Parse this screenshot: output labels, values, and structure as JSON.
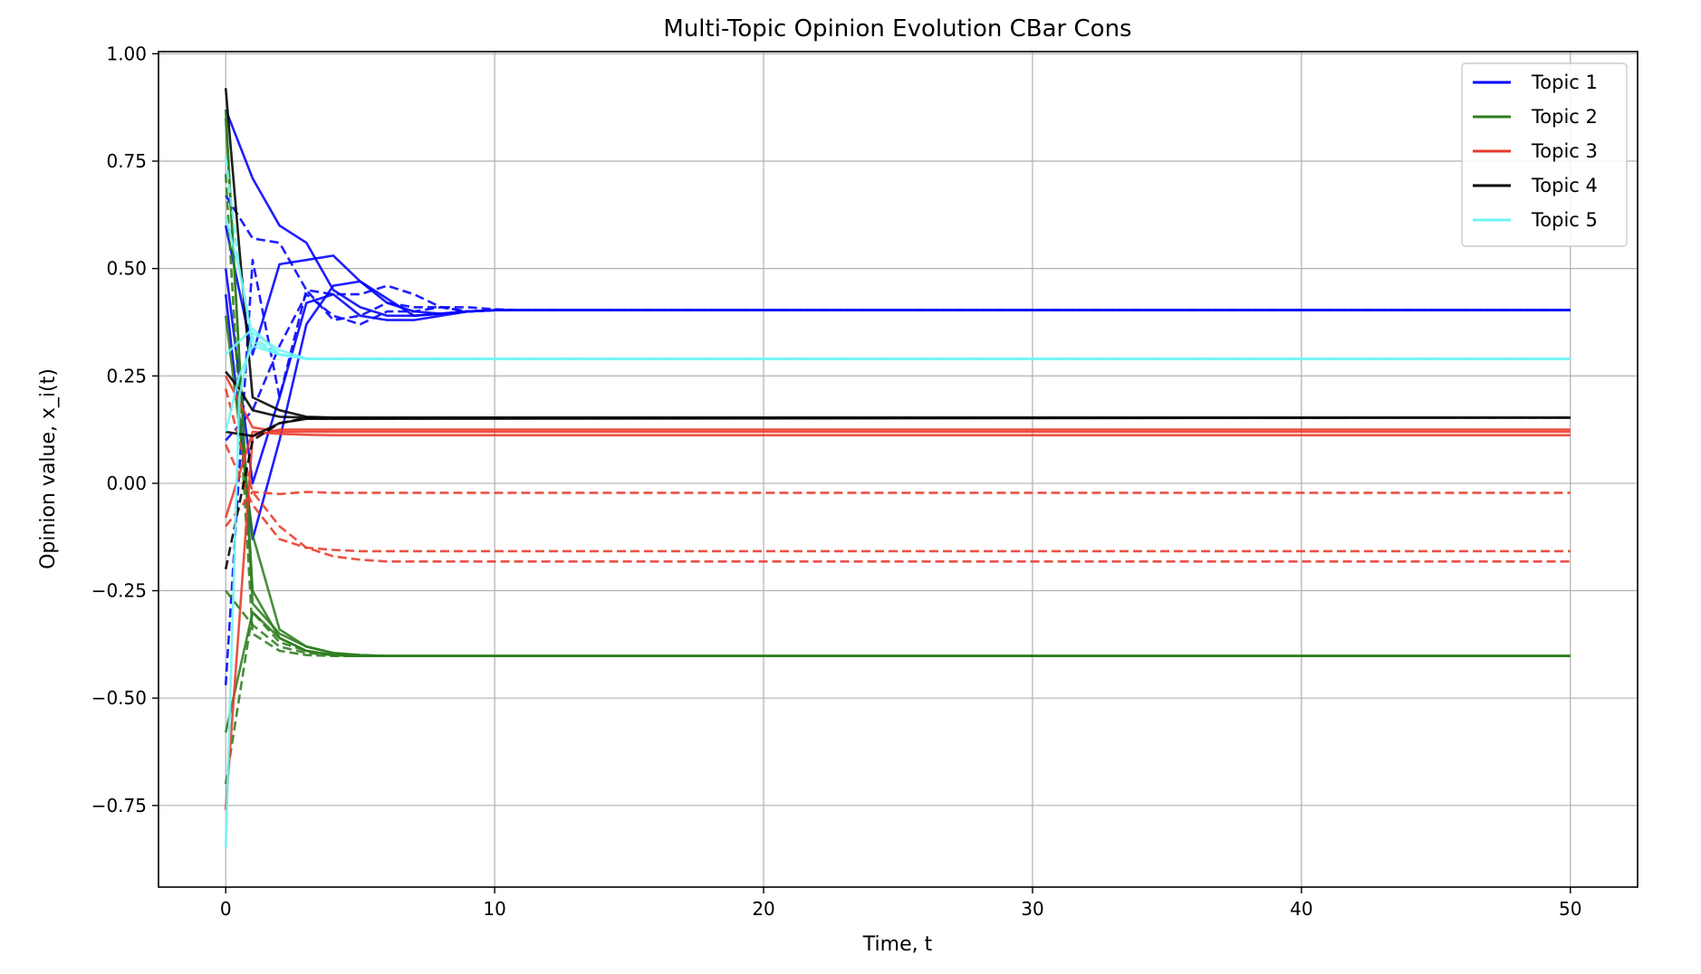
{
  "chart_data": {
    "type": "line",
    "title": "Multi-Topic Opinion Evolution CBar Cons",
    "xlabel": "Time, t",
    "ylabel": "Opinion value, x_i(t)",
    "xlim": [
      -2.5,
      52.5
    ],
    "ylim": [
      -0.94,
      1.005
    ],
    "xticks": [
      0,
      10,
      20,
      30,
      40,
      50
    ],
    "xtick_labels": [
      "0",
      "10",
      "20",
      "30",
      "40",
      "50"
    ],
    "yticks": [
      1.0,
      0.75,
      0.5,
      0.25,
      0.0,
      -0.25,
      -0.5,
      -0.75
    ],
    "ytick_labels": [
      "1.00",
      "0.75",
      "0.50",
      "0.25",
      "0.00",
      "−0.25",
      "−0.50",
      "−0.75"
    ],
    "grid": true,
    "legend_position": "top-right",
    "legend": [
      {
        "label": "Topic 1",
        "color": "#0000ff"
      },
      {
        "label": "Topic 2",
        "color": "#2e7d1e"
      },
      {
        "label": "Topic 3",
        "color": "#e8392a"
      },
      {
        "label": "Topic 4",
        "color": "#000000"
      },
      {
        "label": "Topic 5",
        "color": "#6ef5f5"
      }
    ],
    "series": [
      {
        "topic": 1,
        "style": "solid",
        "x": [
          0,
          1,
          2,
          3,
          4,
          5,
          6,
          7,
          8,
          9,
          10,
          50
        ],
        "y": [
          0.87,
          0.71,
          0.6,
          0.56,
          0.45,
          0.41,
          0.39,
          0.39,
          0.395,
          0.4,
          0.403,
          0.403
        ]
      },
      {
        "topic": 1,
        "style": "solid",
        "x": [
          0,
          1,
          2,
          3,
          4,
          5,
          6,
          7,
          8,
          9,
          10,
          50
        ],
        "y": [
          0.6,
          0.3,
          0.51,
          0.52,
          0.53,
          0.47,
          0.42,
          0.4,
          0.395,
          0.4,
          0.403,
          0.403
        ]
      },
      {
        "topic": 1,
        "style": "solid",
        "x": [
          0,
          1,
          2,
          3,
          4,
          5,
          6,
          7,
          8,
          9,
          10,
          50
        ],
        "y": [
          0.44,
          -0.13,
          0.1,
          0.37,
          0.46,
          0.47,
          0.43,
          0.39,
          0.395,
          0.4,
          0.403,
          0.403
        ]
      },
      {
        "topic": 1,
        "style": "solid",
        "x": [
          0,
          1,
          2,
          3,
          4,
          5,
          6,
          7,
          8,
          9,
          10,
          50
        ],
        "y": [
          0.5,
          0.0,
          0.2,
          0.42,
          0.44,
          0.39,
          0.38,
          0.38,
          0.39,
          0.4,
          0.403,
          0.403
        ]
      },
      {
        "topic": 1,
        "style": "dashed",
        "x": [
          0,
          1,
          2,
          3,
          4,
          5,
          6,
          7,
          8,
          9,
          10,
          11,
          50
        ],
        "y": [
          0.67,
          0.57,
          0.56,
          0.45,
          0.44,
          0.44,
          0.46,
          0.44,
          0.41,
          0.4,
          0.403,
          0.403,
          0.403
        ]
      },
      {
        "topic": 1,
        "style": "dashed",
        "x": [
          0,
          1,
          2,
          3,
          4,
          5,
          6,
          7,
          8,
          9,
          10,
          11,
          50
        ],
        "y": [
          -0.47,
          0.52,
          0.2,
          0.45,
          0.38,
          0.39,
          0.42,
          0.41,
          0.41,
          0.41,
          0.405,
          0.403,
          0.403
        ]
      },
      {
        "topic": 1,
        "style": "dashed",
        "x": [
          0,
          1,
          2,
          3,
          4,
          5,
          6,
          7,
          8,
          9,
          10,
          11,
          50
        ],
        "y": [
          0.1,
          0.17,
          0.32,
          0.44,
          0.39,
          0.37,
          0.4,
          0.4,
          0.41,
          0.4,
          0.403,
          0.403,
          0.403
        ]
      },
      {
        "topic": 2,
        "style": "solid",
        "x": [
          0,
          1,
          2,
          3,
          4,
          5,
          6,
          50
        ],
        "y": [
          0.87,
          -0.28,
          -0.35,
          -0.38,
          -0.395,
          -0.4,
          -0.402,
          -0.402
        ]
      },
      {
        "topic": 2,
        "style": "solid",
        "x": [
          0,
          1,
          2,
          3,
          4,
          5,
          6,
          50
        ],
        "y": [
          0.85,
          -0.25,
          -0.36,
          -0.39,
          -0.4,
          -0.402,
          -0.402,
          -0.402
        ]
      },
      {
        "topic": 2,
        "style": "solid",
        "x": [
          0,
          1,
          2,
          3,
          4,
          5,
          6,
          50
        ],
        "y": [
          0.39,
          -0.12,
          -0.34,
          -0.38,
          -0.395,
          -0.4,
          -0.402,
          -0.402
        ]
      },
      {
        "topic": 2,
        "style": "solid",
        "x": [
          0,
          1,
          2,
          3,
          4,
          5,
          6,
          50
        ],
        "y": [
          -0.58,
          -0.3,
          -0.36,
          -0.39,
          -0.4,
          -0.402,
          -0.402,
          -0.402
        ]
      },
      {
        "topic": 2,
        "style": "dashed",
        "x": [
          0,
          1,
          2,
          3,
          4,
          5,
          6,
          50
        ],
        "y": [
          -0.25,
          -0.33,
          -0.38,
          -0.395,
          -0.4,
          -0.402,
          -0.402,
          -0.402
        ]
      },
      {
        "topic": 2,
        "style": "dashed",
        "x": [
          0,
          1,
          2,
          3,
          4,
          5,
          6,
          50
        ],
        "y": [
          0.72,
          -0.35,
          -0.39,
          -0.4,
          -0.402,
          -0.402,
          -0.402,
          -0.402
        ]
      },
      {
        "topic": 2,
        "style": "dashed",
        "x": [
          0,
          1,
          2,
          3,
          4,
          5,
          6,
          50
        ],
        "y": [
          -0.7,
          -0.3,
          -0.37,
          -0.39,
          -0.4,
          -0.402,
          -0.402,
          -0.402
        ]
      },
      {
        "topic": 3,
        "style": "solid",
        "x": [
          0,
          1,
          2,
          3,
          4,
          50
        ],
        "y": [
          0.25,
          0.13,
          0.12,
          0.12,
          0.12,
          0.12
        ]
      },
      {
        "topic": 3,
        "style": "solid",
        "x": [
          0,
          1,
          2,
          3,
          4,
          50
        ],
        "y": [
          -0.08,
          0.12,
          0.115,
          0.113,
          0.112,
          0.112
        ]
      },
      {
        "topic": 3,
        "style": "solid",
        "x": [
          0,
          1,
          2,
          3,
          4,
          50
        ],
        "y": [
          -0.76,
          0.11,
          0.125,
          0.125,
          0.125,
          0.125
        ]
      },
      {
        "topic": 3,
        "style": "dashed",
        "x": [
          0,
          1,
          2,
          3,
          4,
          5,
          50
        ],
        "y": [
          0.09,
          -0.05,
          -0.13,
          -0.15,
          -0.155,
          -0.158,
          -0.158
        ]
      },
      {
        "topic": 3,
        "style": "dashed",
        "x": [
          0,
          1,
          2,
          3,
          4,
          5,
          6,
          50
        ],
        "y": [
          0.22,
          -0.02,
          -0.1,
          -0.15,
          -0.17,
          -0.178,
          -0.182,
          -0.182
        ]
      },
      {
        "topic": 3,
        "style": "dashed",
        "x": [
          0,
          1,
          2,
          3,
          4,
          50
        ],
        "y": [
          -0.1,
          -0.02,
          -0.025,
          -0.02,
          -0.022,
          -0.022
        ]
      },
      {
        "topic": 4,
        "style": "solid",
        "x": [
          0,
          0.5,
          1,
          2,
          3,
          4,
          50
        ],
        "y": [
          0.92,
          0.55,
          0.2,
          0.17,
          0.155,
          0.153,
          0.153
        ]
      },
      {
        "topic": 4,
        "style": "solid",
        "x": [
          0,
          0.5,
          1,
          2,
          3,
          50
        ],
        "y": [
          0.26,
          0.22,
          0.17,
          0.155,
          0.153,
          0.153
        ]
      },
      {
        "topic": 4,
        "style": "solid",
        "x": [
          0,
          1,
          2,
          3,
          50
        ],
        "y": [
          0.12,
          0.11,
          0.14,
          0.15,
          0.153
        ]
      },
      {
        "topic": 4,
        "style": "dashed",
        "x": [
          0,
          1,
          2,
          3,
          50
        ],
        "y": [
          -0.2,
          0.1,
          0.14,
          0.152,
          0.153
        ]
      },
      {
        "topic": 5,
        "style": "solid",
        "x": [
          0,
          0.5,
          1,
          2,
          3,
          50
        ],
        "y": [
          0.62,
          0.5,
          0.33,
          0.3,
          0.29,
          0.29
        ]
      },
      {
        "topic": 5,
        "style": "solid",
        "x": [
          0,
          0.5,
          1,
          2,
          3,
          50
        ],
        "y": [
          0.12,
          0.25,
          0.32,
          0.3,
          0.29,
          0.29
        ]
      },
      {
        "topic": 5,
        "style": "solid",
        "x": [
          0,
          0.5,
          1,
          2,
          3,
          50
        ],
        "y": [
          -0.85,
          0.2,
          0.35,
          0.31,
          0.29,
          0.29
        ]
      },
      {
        "topic": 5,
        "style": "solid",
        "x": [
          0,
          1,
          2,
          3,
          50
        ],
        "y": [
          0.3,
          0.36,
          0.3,
          0.29,
          0.29
        ]
      },
      {
        "topic": 5,
        "style": "dashed",
        "x": [
          0,
          0.5,
          1,
          2,
          3,
          50
        ],
        "y": [
          0.76,
          0.5,
          0.34,
          0.3,
          0.29,
          0.29
        ]
      }
    ]
  }
}
